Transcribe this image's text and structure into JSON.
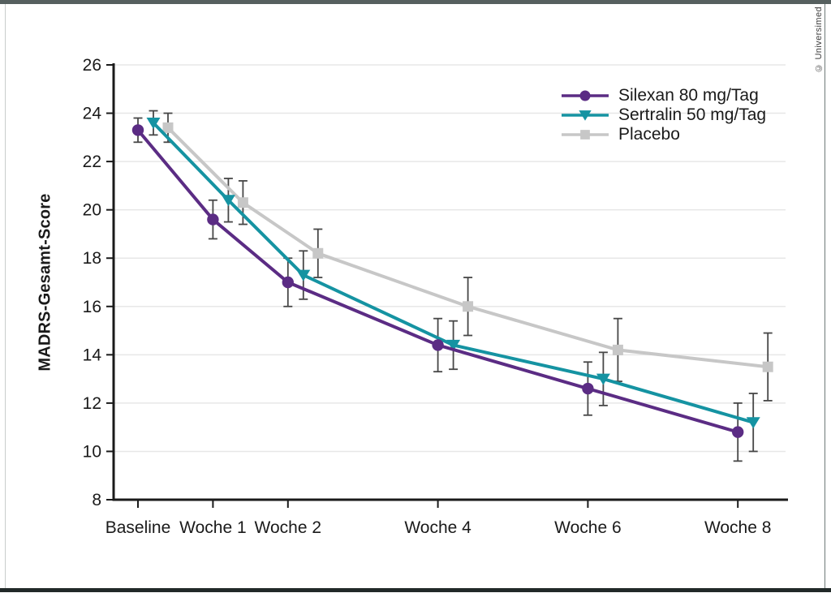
{
  "frame": {
    "credit": "© Universimed",
    "top_bar_color": "#56605f",
    "bottom_bar_color": "#212928",
    "left_edge_color": "#c9cdcc",
    "right_edge_color": "#6f7978"
  },
  "chart_data": {
    "type": "line",
    "title": "",
    "xlabel": "",
    "ylabel": "MADRS-Gesamt-Score",
    "categories": [
      "Baseline",
      "Woche 1",
      "Woche 2",
      "Woche 4",
      "Woche 6",
      "Woche 8"
    ],
    "x_weeks": [
      0,
      1,
      2,
      4,
      6,
      8
    ],
    "ylim": [
      8,
      26
    ],
    "yticks": [
      8,
      10,
      12,
      14,
      16,
      18,
      20,
      22,
      24,
      26
    ],
    "grid": "horizontal",
    "legend_position": "top-right",
    "series": [
      {
        "name": "Silexan 80 mg/Tag",
        "color": "#5b2c84",
        "marker": "circle",
        "values": [
          23.3,
          19.6,
          17.0,
          14.4,
          12.6,
          10.8
        ],
        "error": [
          0.5,
          0.8,
          1.0,
          1.1,
          1.1,
          1.2
        ]
      },
      {
        "name": "Sertralin 50 mg/Tag",
        "color": "#1593a2",
        "marker": "triangle-down",
        "values": [
          23.6,
          20.4,
          17.3,
          14.4,
          13.0,
          11.2
        ],
        "error": [
          0.5,
          0.9,
          1.0,
          1.0,
          1.1,
          1.2
        ]
      },
      {
        "name": "Placebo",
        "color": "#c7c7c7",
        "marker": "square",
        "values": [
          23.4,
          20.3,
          18.2,
          16.0,
          14.2,
          13.5
        ],
        "error": [
          0.6,
          0.9,
          1.0,
          1.2,
          1.3,
          1.4
        ]
      }
    ],
    "error_bar_color": "#474747",
    "grid_color": "#e7e7e7",
    "axis_color": "#1a1a1a"
  }
}
